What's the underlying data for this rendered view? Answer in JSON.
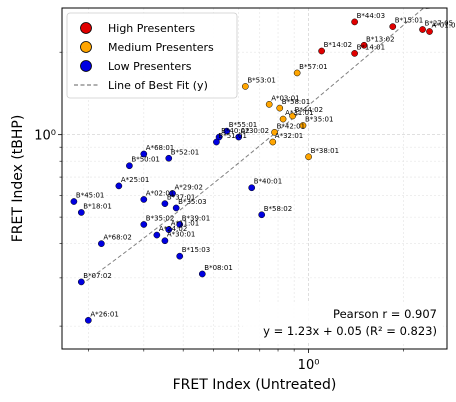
{
  "chart_data": {
    "type": "scatter",
    "xlabel": "FRET Index (Untreated)",
    "ylabel": "FRET Index (tBHP)",
    "x_scale": "log",
    "y_scale": "log",
    "xlim": [
      0.165,
      2.75
    ],
    "ylim": [
      0.165,
      2.9
    ],
    "x_ticks": [
      {
        "value": 1.0,
        "label": "10⁰"
      }
    ],
    "y_ticks": [
      {
        "value": 1.0,
        "label": "10⁰"
      }
    ],
    "grid": true,
    "legend_position": "top-left",
    "legend": [
      {
        "label": "High Presenters",
        "color": "#e00000",
        "marker": "circle"
      },
      {
        "label": "Medium Presenters",
        "color": "#ffa500",
        "marker": "circle"
      },
      {
        "label": "Low Presenters",
        "color": "#0000e0",
        "marker": "circle"
      },
      {
        "label": "Line of Best Fit (y)",
        "color": "#808080",
        "marker": "dashed-line"
      }
    ],
    "fit_line": {
      "slope": 1.23,
      "intercept": 0.05,
      "x_range": [
        0.19,
        2.45
      ]
    },
    "annotation_lines": [
      "Pearson r = 0.907",
      "y = 1.23x + 0.05 (R² = 0.823)"
    ],
    "series": [
      {
        "name": "High Presenters",
        "color": "#e00000",
        "points": [
          {
            "label": "B*44:03",
            "x": 1.4,
            "y": 2.58
          },
          {
            "label": "B*15:01",
            "x": 1.85,
            "y": 2.48
          },
          {
            "label": "B*27:05",
            "x": 2.3,
            "y": 2.42
          },
          {
            "label": "A*01:01",
            "x": 2.42,
            "y": 2.38
          },
          {
            "label": "B*14:02",
            "x": 1.1,
            "y": 2.02
          },
          {
            "label": "B*13:02",
            "x": 1.5,
            "y": 2.12
          },
          {
            "label": "B*14:01",
            "x": 1.4,
            "y": 1.98
          }
        ]
      },
      {
        "name": "Medium Presenters",
        "color": "#ffa500",
        "points": [
          {
            "label": "B*57:01",
            "x": 0.92,
            "y": 1.68
          },
          {
            "label": "B*53:01",
            "x": 0.63,
            "y": 1.5
          },
          {
            "label": "A*03:01",
            "x": 0.75,
            "y": 1.29
          },
          {
            "label": "B*58:01",
            "x": 0.81,
            "y": 1.25
          },
          {
            "label": "B*44:02",
            "x": 0.89,
            "y": 1.17
          },
          {
            "label": "A*31:01",
            "x": 0.83,
            "y": 1.14
          },
          {
            "label": "B*35:01",
            "x": 0.96,
            "y": 1.08
          },
          {
            "label": "B*42:01",
            "x": 0.78,
            "y": 1.02
          },
          {
            "label": "A*32:01",
            "x": 0.77,
            "y": 0.94
          },
          {
            "label": "B*38:01",
            "x": 1.0,
            "y": 0.83
          }
        ]
      },
      {
        "name": "Low Presenters",
        "color": "#0000e0",
        "points": [
          {
            "label": "B*55:01",
            "x": 0.55,
            "y": 1.03
          },
          {
            "label": "B*40:02",
            "x": 0.52,
            "y": 0.98
          },
          {
            "label": "A*30:02",
            "x": 0.6,
            "y": 0.98
          },
          {
            "label": "B*51:01",
            "x": 0.51,
            "y": 0.94
          },
          {
            "label": "A*68:01",
            "x": 0.3,
            "y": 0.85
          },
          {
            "label": "B*52:01",
            "x": 0.36,
            "y": 0.82
          },
          {
            "label": "B*50:01",
            "x": 0.27,
            "y": 0.77
          },
          {
            "label": "A*25:01",
            "x": 0.25,
            "y": 0.65
          },
          {
            "label": "B*40:01",
            "x": 0.66,
            "y": 0.64
          },
          {
            "label": "A*29:02",
            "x": 0.37,
            "y": 0.61
          },
          {
            "label": "A*02:01",
            "x": 0.3,
            "y": 0.58
          },
          {
            "label": "B*37:01",
            "x": 0.35,
            "y": 0.56
          },
          {
            "label": "B*35:03",
            "x": 0.38,
            "y": 0.54
          },
          {
            "label": "B*45:01",
            "x": 0.18,
            "y": 0.57
          },
          {
            "label": "B*18:01",
            "x": 0.19,
            "y": 0.52
          },
          {
            "label": "B*58:02",
            "x": 0.71,
            "y": 0.51
          },
          {
            "label": "B*39:01",
            "x": 0.39,
            "y": 0.47
          },
          {
            "label": "B*35:02",
            "x": 0.3,
            "y": 0.47
          },
          {
            "label": "A*11:01",
            "x": 0.36,
            "y": 0.45
          },
          {
            "label": "A*24:02",
            "x": 0.33,
            "y": 0.43
          },
          {
            "label": "A*30:01",
            "x": 0.35,
            "y": 0.41
          },
          {
            "label": "A*68:02",
            "x": 0.22,
            "y": 0.4
          },
          {
            "label": "B*15:03",
            "x": 0.39,
            "y": 0.36
          },
          {
            "label": "B*08:01",
            "x": 0.46,
            "y": 0.31
          },
          {
            "label": "B*07:02",
            "x": 0.19,
            "y": 0.29
          },
          {
            "label": "A*26:01",
            "x": 0.2,
            "y": 0.21
          }
        ]
      }
    ]
  }
}
